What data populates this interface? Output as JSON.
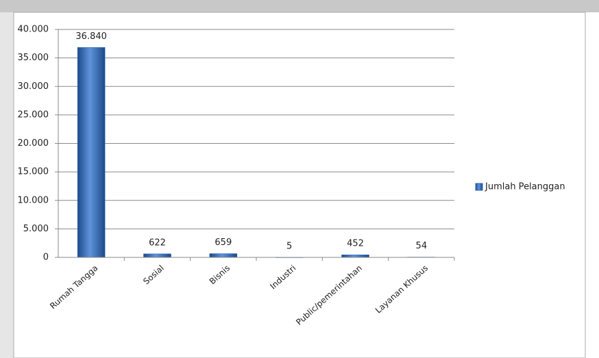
{
  "chart_data": {
    "type": "bar",
    "categories": [
      "Rumah Tangga",
      "Sosial",
      "Bisnis",
      "Industri",
      "Public/pemerintahan",
      "Layanan Khusus"
    ],
    "series": [
      {
        "name": "Jumlah Pelanggan",
        "color": "#2f65b0",
        "values": [
          36840,
          622,
          659,
          5,
          452,
          54
        ],
        "value_labels": [
          "36.840",
          "622",
          "659",
          "5",
          "452",
          "54"
        ]
      }
    ],
    "ylim": [
      0,
      40000
    ],
    "yticks": [
      0,
      {
        "value": 5000,
        "label": "5.000"
      },
      {
        "value": 10000,
        "label": "10.000"
      },
      {
        "value": 15000,
        "label": "15.000"
      },
      {
        "value": 20000,
        "label": "20.000"
      },
      {
        "value": 25000,
        "label": "25.000"
      },
      {
        "value": 30000,
        "label": "30.000"
      },
      {
        "value": 35000,
        "label": "35.000"
      },
      {
        "value": 40000,
        "label": "40.000"
      }
    ],
    "grid": true,
    "legend": "right"
  }
}
